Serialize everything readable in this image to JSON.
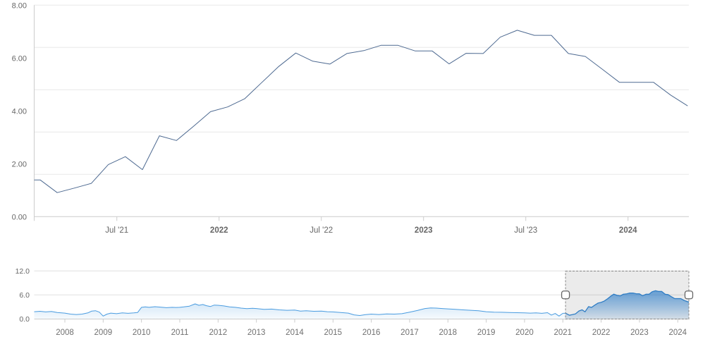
{
  "colors": {
    "background": "#ffffff",
    "main_line": "#4e6a91",
    "grid_line": "#e8e8e8",
    "axis_line": "#cccccc",
    "tick_color": "#cccccc",
    "label_color": "#666666",
    "nav_label_color": "#707070",
    "nav_line": "#4a9ce0",
    "nav_fill_top": "rgba(74,156,224,0.38)",
    "nav_fill_bottom": "rgba(74,156,224,0.05)",
    "nav_selected_line": "#2e7cc4",
    "nav_selected_fill_top": "rgba(47,124,200,0.55)",
    "nav_selected_fill_bottom": "rgba(47,124,200,0.08)",
    "nav_grid": "#e0e0e0",
    "mask_fill": "rgba(0,0,0,0.08)",
    "outline_color": "#888888",
    "handle_fill": "#ffffff",
    "handle_stroke": "#666666"
  },
  "chart_data": {
    "type": "line",
    "title": "",
    "main_chart": {
      "ylim": [
        0,
        8
      ],
      "grid": true,
      "gridline_values": [
        1.6,
        3.2,
        4.8,
        6.4,
        8.0
      ],
      "y_axis_labels": [
        {
          "value": 8,
          "label": "8.00"
        },
        {
          "value": 6,
          "label": "6.00"
        },
        {
          "value": 4,
          "label": "4.00"
        },
        {
          "value": 2,
          "label": "2.00"
        },
        {
          "value": 0,
          "label": "0.00"
        }
      ],
      "x_axis_ticks": [
        {
          "label": "Jul '21",
          "month_index": 6,
          "bold": false
        },
        {
          "label": "2022",
          "month_index": 12,
          "bold": true
        },
        {
          "label": "Jul '22",
          "month_index": 18,
          "bold": false
        },
        {
          "label": "2023",
          "month_index": 24,
          "bold": true
        },
        {
          "label": "Jul '23",
          "month_index": 30,
          "bold": false
        },
        {
          "label": "2024",
          "month_index": 36,
          "bold": true
        }
      ],
      "series": {
        "name": "main-series",
        "start_month": "2021-01",
        "frequency": "monthly",
        "values": [
          1.39,
          1.39,
          0.91,
          1.08,
          1.26,
          1.97,
          2.27,
          1.78,
          3.06,
          2.88,
          3.42,
          3.97,
          4.15,
          4.46,
          5.07,
          5.68,
          6.19,
          5.88,
          5.77,
          6.17,
          6.28,
          6.48,
          6.48,
          6.27,
          6.27,
          5.78,
          6.18,
          6.17,
          6.79,
          7.05,
          6.86,
          6.86,
          6.17,
          6.06,
          5.57,
          5.08,
          5.08,
          5.08,
          4.6,
          4.19
        ]
      }
    },
    "navigator": {
      "ylim": [
        0,
        12
      ],
      "y_axis_labels": [
        {
          "value": 12,
          "label": "12.0"
        },
        {
          "value": 6,
          "label": "6.0"
        },
        {
          "value": 0,
          "label": "0.0"
        }
      ],
      "x_axis_labels": [
        "2008",
        "2009",
        "2010",
        "2011",
        "2012",
        "2013",
        "2014",
        "2015",
        "2016",
        "2017",
        "2018",
        "2019",
        "2020",
        "2021",
        "2022",
        "2023",
        "2024"
      ],
      "x_range": [
        2007.2,
        2024.29
      ],
      "selected_range": [
        2021.07,
        2024.29
      ],
      "series_points": [
        [
          2007.2,
          1.8
        ],
        [
          2007.35,
          1.9
        ],
        [
          2007.5,
          1.75
        ],
        [
          2007.65,
          1.85
        ],
        [
          2007.8,
          1.6
        ],
        [
          2008.0,
          1.45
        ],
        [
          2008.15,
          1.2
        ],
        [
          2008.3,
          1.1
        ],
        [
          2008.45,
          1.2
        ],
        [
          2008.6,
          1.5
        ],
        [
          2008.7,
          1.95
        ],
        [
          2008.8,
          2.05
        ],
        [
          2008.9,
          1.7
        ],
        [
          2009.0,
          0.7
        ],
        [
          2009.1,
          1.2
        ],
        [
          2009.2,
          1.45
        ],
        [
          2009.35,
          1.3
        ],
        [
          2009.5,
          1.5
        ],
        [
          2009.65,
          1.4
        ],
        [
          2009.8,
          1.5
        ],
        [
          2009.9,
          1.6
        ],
        [
          2010.0,
          2.9
        ],
        [
          2010.1,
          3.0
        ],
        [
          2010.2,
          2.9
        ],
        [
          2010.35,
          3.05
        ],
        [
          2010.5,
          2.95
        ],
        [
          2010.65,
          2.8
        ],
        [
          2010.8,
          2.9
        ],
        [
          2010.9,
          2.85
        ],
        [
          2011.0,
          2.9
        ],
        [
          2011.1,
          3.0
        ],
        [
          2011.25,
          3.2
        ],
        [
          2011.4,
          3.75
        ],
        [
          2011.5,
          3.4
        ],
        [
          2011.6,
          3.6
        ],
        [
          2011.7,
          3.3
        ],
        [
          2011.8,
          3.1
        ],
        [
          2011.9,
          3.45
        ],
        [
          2012.0,
          3.4
        ],
        [
          2012.15,
          3.25
        ],
        [
          2012.3,
          3.0
        ],
        [
          2012.45,
          2.9
        ],
        [
          2012.6,
          2.7
        ],
        [
          2012.75,
          2.55
        ],
        [
          2012.9,
          2.65
        ],
        [
          2013.0,
          2.6
        ],
        [
          2013.2,
          2.4
        ],
        [
          2013.4,
          2.45
        ],
        [
          2013.6,
          2.25
        ],
        [
          2013.8,
          2.15
        ],
        [
          2014.0,
          2.2
        ],
        [
          2014.15,
          1.95
        ],
        [
          2014.3,
          2.05
        ],
        [
          2014.5,
          1.9
        ],
        [
          2014.7,
          1.95
        ],
        [
          2014.85,
          1.8
        ],
        [
          2015.0,
          1.75
        ],
        [
          2015.2,
          1.6
        ],
        [
          2015.4,
          1.45
        ],
        [
          2015.55,
          1.0
        ],
        [
          2015.7,
          0.85
        ],
        [
          2015.85,
          1.05
        ],
        [
          2016.0,
          1.2
        ],
        [
          2016.2,
          1.1
        ],
        [
          2016.4,
          1.25
        ],
        [
          2016.6,
          1.2
        ],
        [
          2016.8,
          1.3
        ],
        [
          2017.0,
          1.7
        ],
        [
          2017.2,
          2.1
        ],
        [
          2017.4,
          2.6
        ],
        [
          2017.55,
          2.75
        ],
        [
          2017.7,
          2.7
        ],
        [
          2017.85,
          2.6
        ],
        [
          2018.0,
          2.5
        ],
        [
          2018.2,
          2.4
        ],
        [
          2018.4,
          2.25
        ],
        [
          2018.6,
          2.15
        ],
        [
          2018.8,
          2.05
        ],
        [
          2019.0,
          1.8
        ],
        [
          2019.2,
          1.7
        ],
        [
          2019.4,
          1.65
        ],
        [
          2019.6,
          1.6
        ],
        [
          2019.8,
          1.55
        ],
        [
          2020.0,
          1.5
        ],
        [
          2020.15,
          1.45
        ],
        [
          2020.3,
          1.5
        ],
        [
          2020.45,
          1.4
        ],
        [
          2020.6,
          1.55
        ],
        [
          2020.7,
          0.95
        ],
        [
          2020.8,
          1.35
        ],
        [
          2020.9,
          0.7
        ],
        [
          2021.0,
          1.39
        ],
        [
          2021.08,
          1.39
        ],
        [
          2021.17,
          0.91
        ],
        [
          2021.25,
          1.08
        ],
        [
          2021.33,
          1.26
        ],
        [
          2021.42,
          1.97
        ],
        [
          2021.5,
          2.27
        ],
        [
          2021.58,
          1.78
        ],
        [
          2021.67,
          3.06
        ],
        [
          2021.75,
          2.88
        ],
        [
          2021.83,
          3.42
        ],
        [
          2021.92,
          3.97
        ],
        [
          2022.0,
          4.15
        ],
        [
          2022.08,
          4.46
        ],
        [
          2022.17,
          5.07
        ],
        [
          2022.25,
          5.68
        ],
        [
          2022.33,
          6.19
        ],
        [
          2022.42,
          5.88
        ],
        [
          2022.5,
          5.77
        ],
        [
          2022.58,
          6.17
        ],
        [
          2022.67,
          6.28
        ],
        [
          2022.75,
          6.48
        ],
        [
          2022.83,
          6.48
        ],
        [
          2022.92,
          6.27
        ],
        [
          2023.0,
          6.27
        ],
        [
          2023.08,
          5.78
        ],
        [
          2023.17,
          6.18
        ],
        [
          2023.25,
          6.17
        ],
        [
          2023.33,
          6.79
        ],
        [
          2023.42,
          7.05
        ],
        [
          2023.5,
          6.86
        ],
        [
          2023.58,
          6.86
        ],
        [
          2023.67,
          6.17
        ],
        [
          2023.75,
          6.06
        ],
        [
          2023.83,
          5.57
        ],
        [
          2023.92,
          5.08
        ],
        [
          2024.0,
          5.08
        ],
        [
          2024.08,
          5.08
        ],
        [
          2024.17,
          4.6
        ],
        [
          2024.29,
          4.19
        ]
      ]
    }
  }
}
